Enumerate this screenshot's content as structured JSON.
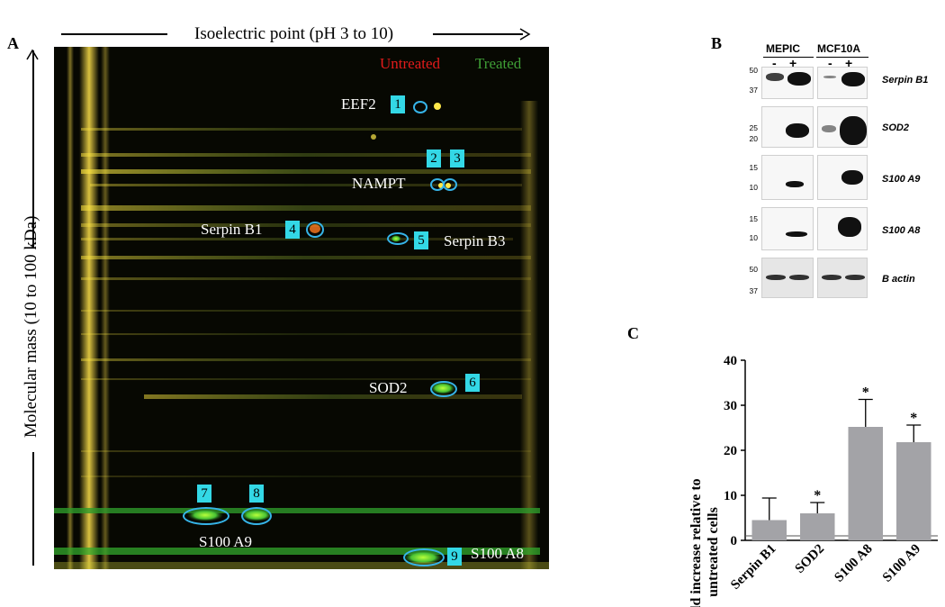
{
  "panelA": {
    "letter": "A",
    "top_axis_label": "Isoelectric point (pH 3 to 10)",
    "left_axis_label": "Molecular mass  (10 to 100 kDa)",
    "legend_untreated": "Untreated",
    "legend_treated": "Treated",
    "legend_untreated_color": "#e21b1b",
    "legend_treated_color": "#3f9e36",
    "labels": {
      "eef2": "EEF2",
      "nampt": "NAMPT",
      "serpin_b1": "Serpin B1",
      "serpin_b3": "Serpin B3",
      "sod2": "SOD2",
      "s100a9": "S100 A9",
      "s100a8": "S100 A8"
    },
    "spot_numbers": [
      "1",
      "2",
      "3",
      "4",
      "5",
      "6",
      "7",
      "8",
      "9"
    ],
    "marker_color": "#33d8e6"
  },
  "panelB": {
    "letter": "B",
    "cell_lines": [
      "MEPIC",
      "MCF10A"
    ],
    "lane_signs": [
      "-",
      "+",
      "-",
      "+"
    ],
    "blots": [
      {
        "protein": "Serpin B1",
        "mw": [
          "50",
          "37"
        ]
      },
      {
        "protein": "SOD2",
        "mw": [
          "25",
          "20"
        ]
      },
      {
        "protein": "S100 A9",
        "mw": [
          "15",
          "10"
        ]
      },
      {
        "protein": "S100 A8",
        "mw": [
          "15",
          "10"
        ]
      },
      {
        "protein": "B actin",
        "mw": [
          "50",
          "37"
        ]
      }
    ]
  },
  "panelC": {
    "letter": "C",
    "chart_data": {
      "type": "bar",
      "categories": [
        "Serpin B1",
        "SOD2",
        "S100 A8",
        "S100 A9"
      ],
      "values": [
        4.5,
        6.0,
        25.2,
        21.8
      ],
      "error_upper": [
        9.4,
        8.4,
        31.3,
        25.6
      ],
      "significant": [
        false,
        true,
        true,
        true
      ],
      "significance_mark": "*",
      "ylabel": "Fold increase relative to untreated cells",
      "ylabel_line1": "Fold increase relative to",
      "ylabel_line2": "untreated cells",
      "ylim": [
        0,
        40
      ],
      "yticks": [
        "0",
        "10",
        "20",
        "30",
        "40"
      ],
      "baseline": 1,
      "bar_color": "#a3a3a7"
    }
  }
}
